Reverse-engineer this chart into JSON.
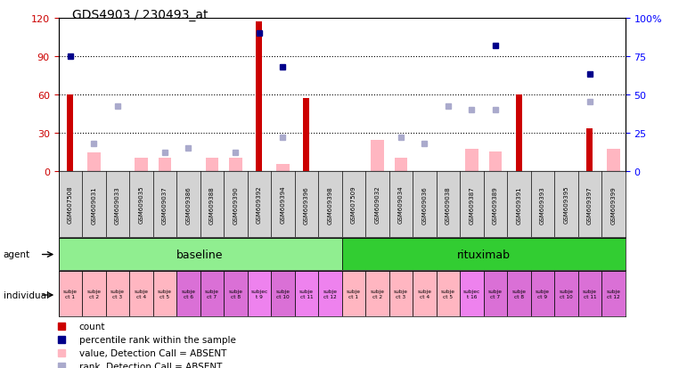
{
  "title": "GDS4903 / 230493_at",
  "samples": [
    "GSM607508",
    "GSM609031",
    "GSM609033",
    "GSM609035",
    "GSM609037",
    "GSM609386",
    "GSM609388",
    "GSM609390",
    "GSM609392",
    "GSM609394",
    "GSM609396",
    "GSM609398",
    "GSM607509",
    "GSM609032",
    "GSM609034",
    "GSM609036",
    "GSM609038",
    "GSM609387",
    "GSM609389",
    "GSM609391",
    "GSM609393",
    "GSM609395",
    "GSM609397",
    "GSM609399"
  ],
  "count_values": [
    60,
    0,
    0,
    0,
    0,
    0,
    0,
    0,
    117,
    0,
    57,
    0,
    0,
    0,
    0,
    0,
    0,
    0,
    0,
    60,
    0,
    0,
    33,
    0
  ],
  "percentile_values": [
    75,
    null,
    null,
    null,
    null,
    null,
    null,
    null,
    90,
    68,
    null,
    null,
    null,
    null,
    null,
    null,
    null,
    null,
    82,
    null,
    null,
    null,
    63,
    null
  ],
  "value_absent": [
    null,
    14,
    null,
    10,
    10,
    null,
    10,
    10,
    null,
    5,
    null,
    null,
    null,
    24,
    10,
    null,
    null,
    17,
    15,
    null,
    null,
    null,
    null,
    17
  ],
  "rank_absent": [
    null,
    18,
    42,
    null,
    12,
    15,
    null,
    12,
    null,
    22,
    null,
    null,
    null,
    null,
    22,
    18,
    42,
    40,
    40,
    null,
    null,
    null,
    45,
    null
  ],
  "agent_groups": [
    {
      "label": "baseline",
      "start": 0,
      "end": 12,
      "color": "#90EE90"
    },
    {
      "label": "rituximab",
      "start": 12,
      "end": 24,
      "color": "#32CD32"
    }
  ],
  "individual_labels": [
    "subje\nct 1",
    "subje\nct 2",
    "subje\nct 3",
    "subje\nct 4",
    "subje\nct 5",
    "subje\nct 6",
    "subje\nct 7",
    "subje\nct 8",
    "subjec\nt 9",
    "subje\nct 10",
    "subje\nct 11",
    "subje\nct 12",
    "subje\nct 1",
    "subje\nct 2",
    "subje\nct 3",
    "subje\nct 4",
    "subje\nct 5",
    "subjec\nt 16",
    "subje\nct 7",
    "subje\nct 8",
    "subje\nct 9",
    "subje\nct 10",
    "subje\nct 11",
    "subje\nct 12"
  ],
  "ylim_left": [
    0,
    120
  ],
  "ylim_right": [
    0,
    100
  ],
  "yticks_left": [
    0,
    30,
    60,
    90,
    120
  ],
  "yticks_right": [
    0,
    25,
    50,
    75,
    100
  ],
  "count_color": "#CC0000",
  "percentile_color": "#00008B",
  "value_absent_color": "#FFB6C1",
  "rank_absent_color": "#AAAACC",
  "bg_color": "#FFFFFF",
  "title_fontsize": 10,
  "individual_colors_alt": [
    "#FFB6C1",
    "#FFB6C1",
    "#FFB6C1",
    "#FFB6C1",
    "#FFB6C1",
    "#DA70D6",
    "#DA70D6",
    "#DA70D6",
    "#EE82EE",
    "#DA70D6",
    "#EE82EE",
    "#EE82EE",
    "#FFB6C1",
    "#FFB6C1",
    "#FFB6C1",
    "#FFB6C1",
    "#FFB6C1",
    "#EE82EE",
    "#DA70D6",
    "#DA70D6",
    "#DA70D6",
    "#DA70D6",
    "#DA70D6",
    "#DA70D6"
  ]
}
